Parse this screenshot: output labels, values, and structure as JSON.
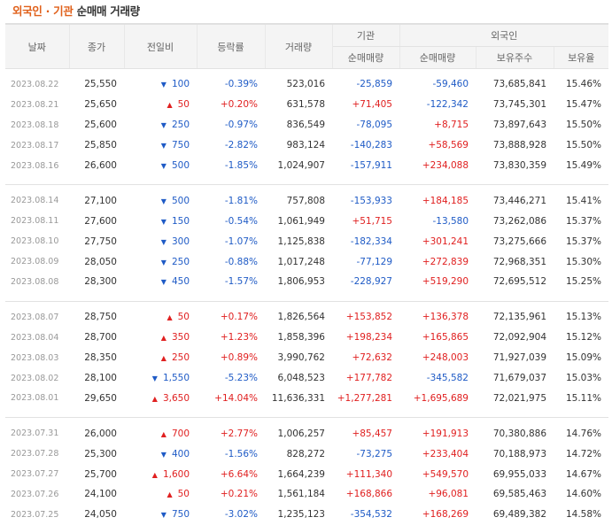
{
  "title": {
    "accent": "외국인 · 기관",
    "rest": "순매매 거래량"
  },
  "headers": {
    "date": "날짜",
    "close": "종가",
    "diff": "전일비",
    "rate": "등락률",
    "volume": "거래량",
    "institution": "기관",
    "foreign": "외국인",
    "inst_net": "순매매량",
    "for_net": "순매매량",
    "for_hold": "보유주수",
    "for_ratio": "보유율"
  },
  "groups": [
    [
      {
        "date": "2023.08.22",
        "close": "25,550",
        "dir": "down",
        "diff": "100",
        "rate": "-0.39%",
        "volume": "523,016",
        "inst": "-25,859",
        "foreign": "-59,460",
        "hold": "73,685,841",
        "ratio": "15.46%"
      },
      {
        "date": "2023.08.21",
        "close": "25,650",
        "dir": "up",
        "diff": "50",
        "rate": "+0.20%",
        "volume": "631,578",
        "inst": "+71,405",
        "foreign": "-122,342",
        "hold": "73,745,301",
        "ratio": "15.47%"
      },
      {
        "date": "2023.08.18",
        "close": "25,600",
        "dir": "down",
        "diff": "250",
        "rate": "-0.97%",
        "volume": "836,549",
        "inst": "-78,095",
        "foreign": "+8,715",
        "hold": "73,897,643",
        "ratio": "15.50%"
      },
      {
        "date": "2023.08.17",
        "close": "25,850",
        "dir": "down",
        "diff": "750",
        "rate": "-2.82%",
        "volume": "983,124",
        "inst": "-140,283",
        "foreign": "+58,569",
        "hold": "73,888,928",
        "ratio": "15.50%"
      },
      {
        "date": "2023.08.16",
        "close": "26,600",
        "dir": "down",
        "diff": "500",
        "rate": "-1.85%",
        "volume": "1,024,907",
        "inst": "-157,911",
        "foreign": "+234,088",
        "hold": "73,830,359",
        "ratio": "15.49%"
      }
    ],
    [
      {
        "date": "2023.08.14",
        "close": "27,100",
        "dir": "down",
        "diff": "500",
        "rate": "-1.81%",
        "volume": "757,808",
        "inst": "-153,933",
        "foreign": "+184,185",
        "hold": "73,446,271",
        "ratio": "15.41%"
      },
      {
        "date": "2023.08.11",
        "close": "27,600",
        "dir": "down",
        "diff": "150",
        "rate": "-0.54%",
        "volume": "1,061,949",
        "inst": "+51,715",
        "foreign": "-13,580",
        "hold": "73,262,086",
        "ratio": "15.37%"
      },
      {
        "date": "2023.08.10",
        "close": "27,750",
        "dir": "down",
        "diff": "300",
        "rate": "-1.07%",
        "volume": "1,125,838",
        "inst": "-182,334",
        "foreign": "+301,241",
        "hold": "73,275,666",
        "ratio": "15.37%"
      },
      {
        "date": "2023.08.09",
        "close": "28,050",
        "dir": "down",
        "diff": "250",
        "rate": "-0.88%",
        "volume": "1,017,248",
        "inst": "-77,129",
        "foreign": "+272,839",
        "hold": "72,968,351",
        "ratio": "15.30%"
      },
      {
        "date": "2023.08.08",
        "close": "28,300",
        "dir": "down",
        "diff": "450",
        "rate": "-1.57%",
        "volume": "1,806,953",
        "inst": "-228,927",
        "foreign": "+519,290",
        "hold": "72,695,512",
        "ratio": "15.25%"
      }
    ],
    [
      {
        "date": "2023.08.07",
        "close": "28,750",
        "dir": "up",
        "diff": "50",
        "rate": "+0.17%",
        "volume": "1,826,564",
        "inst": "+153,852",
        "foreign": "+136,378",
        "hold": "72,135,961",
        "ratio": "15.13%"
      },
      {
        "date": "2023.08.04",
        "close": "28,700",
        "dir": "up",
        "diff": "350",
        "rate": "+1.23%",
        "volume": "1,858,396",
        "inst": "+198,234",
        "foreign": "+165,865",
        "hold": "72,092,904",
        "ratio": "15.12%"
      },
      {
        "date": "2023.08.03",
        "close": "28,350",
        "dir": "up",
        "diff": "250",
        "rate": "+0.89%",
        "volume": "3,990,762",
        "inst": "+72,632",
        "foreign": "+248,003",
        "hold": "71,927,039",
        "ratio": "15.09%"
      },
      {
        "date": "2023.08.02",
        "close": "28,100",
        "dir": "down",
        "diff": "1,550",
        "rate": "-5.23%",
        "volume": "6,048,523",
        "inst": "+177,782",
        "foreign": "-345,582",
        "hold": "71,679,037",
        "ratio": "15.03%"
      },
      {
        "date": "2023.08.01",
        "close": "29,650",
        "dir": "up",
        "diff": "3,650",
        "rate": "+14.04%",
        "volume": "11,636,331",
        "inst": "+1,277,281",
        "foreign": "+1,695,689",
        "hold": "72,021,975",
        "ratio": "15.11%"
      }
    ],
    [
      {
        "date": "2023.07.31",
        "close": "26,000",
        "dir": "up",
        "diff": "700",
        "rate": "+2.77%",
        "volume": "1,006,257",
        "inst": "+85,457",
        "foreign": "+191,913",
        "hold": "70,380,886",
        "ratio": "14.76%"
      },
      {
        "date": "2023.07.28",
        "close": "25,300",
        "dir": "down",
        "diff": "400",
        "rate": "-1.56%",
        "volume": "828,272",
        "inst": "-73,275",
        "foreign": "+233,404",
        "hold": "70,188,973",
        "ratio": "14.72%"
      },
      {
        "date": "2023.07.27",
        "close": "25,700",
        "dir": "up",
        "diff": "1,600",
        "rate": "+6.64%",
        "volume": "1,664,239",
        "inst": "+111,340",
        "foreign": "+549,570",
        "hold": "69,955,033",
        "ratio": "14.67%"
      },
      {
        "date": "2023.07.26",
        "close": "24,100",
        "dir": "up",
        "diff": "50",
        "rate": "+0.21%",
        "volume": "1,561,184",
        "inst": "+168,866",
        "foreign": "+96,081",
        "hold": "69,585,463",
        "ratio": "14.60%"
      },
      {
        "date": "2023.07.25",
        "close": "24,050",
        "dir": "down",
        "diff": "750",
        "rate": "-3.02%",
        "volume": "1,235,123",
        "inst": "-354,532",
        "foreign": "+168,269",
        "hold": "69,489,382",
        "ratio": "14.58%"
      }
    ]
  ],
  "colors": {
    "up": "#e02020",
    "down": "#1f5bc6",
    "accent": "#e0601a"
  }
}
